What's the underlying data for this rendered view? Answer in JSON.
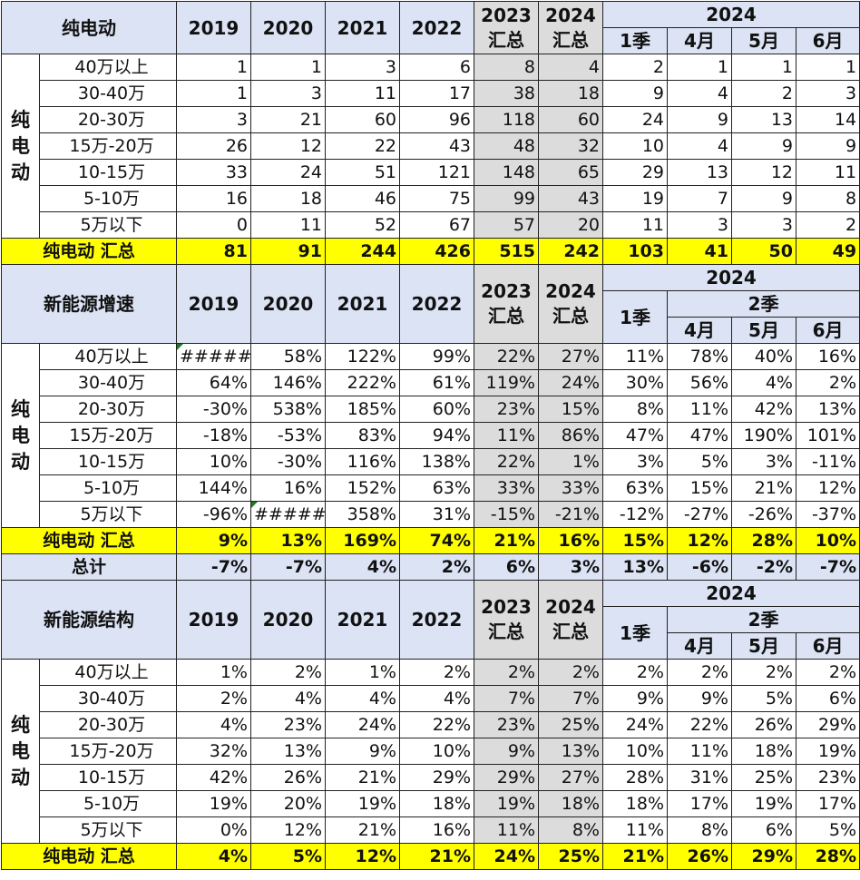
{
  "years": [
    "2019",
    "2020",
    "2021",
    "2022"
  ],
  "sum_cols": {
    "y2023": "2023",
    "y2024": "2024",
    "sum": "汇总"
  },
  "year2024": "2024",
  "q2": "2季",
  "months": {
    "q1": "1季",
    "m4": "4月",
    "m5": "5月",
    "m6": "6月"
  },
  "side_label": [
    "纯",
    "电",
    "动"
  ],
  "categories": [
    "40万以上",
    "30-40万",
    "20-30万",
    "15万-20万",
    "10-15万",
    "5-10万",
    "5万以下"
  ],
  "section1": {
    "title": "纯电动",
    "rows": [
      [
        "1",
        "1",
        "3",
        "6",
        "8",
        "4",
        "2",
        "1",
        "1",
        "1"
      ],
      [
        "1",
        "3",
        "11",
        "17",
        "38",
        "18",
        "9",
        "4",
        "2",
        "3"
      ],
      [
        "3",
        "21",
        "60",
        "96",
        "118",
        "60",
        "24",
        "9",
        "13",
        "14"
      ],
      [
        "26",
        "12",
        "22",
        "43",
        "48",
        "32",
        "10",
        "4",
        "9",
        "9"
      ],
      [
        "33",
        "24",
        "51",
        "121",
        "148",
        "65",
        "29",
        "13",
        "12",
        "11"
      ],
      [
        "16",
        "18",
        "46",
        "75",
        "99",
        "43",
        "19",
        "7",
        "9",
        "8"
      ],
      [
        "0",
        "11",
        "52",
        "67",
        "57",
        "20",
        "11",
        "3",
        "3",
        "2"
      ]
    ],
    "total_label": "纯电动 汇总",
    "total": [
      "81",
      "91",
      "244",
      "426",
      "515",
      "242",
      "103",
      "41",
      "50",
      "49"
    ]
  },
  "section2": {
    "title": "新能源增速",
    "rows": [
      [
        "#####",
        "58%",
        "122%",
        "99%",
        "22%",
        "27%",
        "11%",
        "78%",
        "40%",
        "16%"
      ],
      [
        "64%",
        "146%",
        "222%",
        "61%",
        "119%",
        "24%",
        "30%",
        "56%",
        "4%",
        "2%"
      ],
      [
        "-30%",
        "538%",
        "185%",
        "60%",
        "23%",
        "15%",
        "8%",
        "11%",
        "42%",
        "13%"
      ],
      [
        "-18%",
        "-53%",
        "83%",
        "94%",
        "11%",
        "86%",
        "47%",
        "47%",
        "190%",
        "101%"
      ],
      [
        "10%",
        "-30%",
        "116%",
        "138%",
        "22%",
        "1%",
        "3%",
        "5%",
        "3%",
        "-11%"
      ],
      [
        "144%",
        "16%",
        "152%",
        "63%",
        "33%",
        "33%",
        "63%",
        "15%",
        "21%",
        "12%"
      ],
      [
        "-96%",
        "#####",
        "358%",
        "31%",
        "-15%",
        "-21%",
        "-12%",
        "-27%",
        "-26%",
        "-37%"
      ]
    ],
    "total_label": "纯电动 汇总",
    "total": [
      "9%",
      "13%",
      "169%",
      "74%",
      "21%",
      "16%",
      "15%",
      "12%",
      "28%",
      "10%"
    ],
    "grand_label": "总计",
    "grand": [
      "-7%",
      "-7%",
      "4%",
      "2%",
      "6%",
      "3%",
      "13%",
      "-6%",
      "-2%",
      "-7%"
    ]
  },
  "section3": {
    "title": "新能源结构",
    "rows": [
      [
        "1%",
        "2%",
        "1%",
        "2%",
        "2%",
        "2%",
        "2%",
        "2%",
        "2%",
        "2%"
      ],
      [
        "2%",
        "4%",
        "4%",
        "4%",
        "7%",
        "7%",
        "9%",
        "9%",
        "5%",
        "6%"
      ],
      [
        "4%",
        "23%",
        "24%",
        "22%",
        "23%",
        "25%",
        "24%",
        "22%",
        "26%",
        "29%"
      ],
      [
        "32%",
        "13%",
        "9%",
        "10%",
        "9%",
        "13%",
        "10%",
        "11%",
        "18%",
        "19%"
      ],
      [
        "42%",
        "26%",
        "21%",
        "29%",
        "29%",
        "27%",
        "28%",
        "31%",
        "25%",
        "23%"
      ],
      [
        "19%",
        "20%",
        "19%",
        "18%",
        "19%",
        "18%",
        "18%",
        "17%",
        "19%",
        "17%"
      ],
      [
        "0%",
        "12%",
        "21%",
        "16%",
        "11%",
        "8%",
        "11%",
        "8%",
        "6%",
        "5%"
      ]
    ],
    "total_label": "纯电动 汇总",
    "total": [
      "4%",
      "5%",
      "12%",
      "21%",
      "24%",
      "25%",
      "21%",
      "26%",
      "29%",
      "28%"
    ]
  }
}
